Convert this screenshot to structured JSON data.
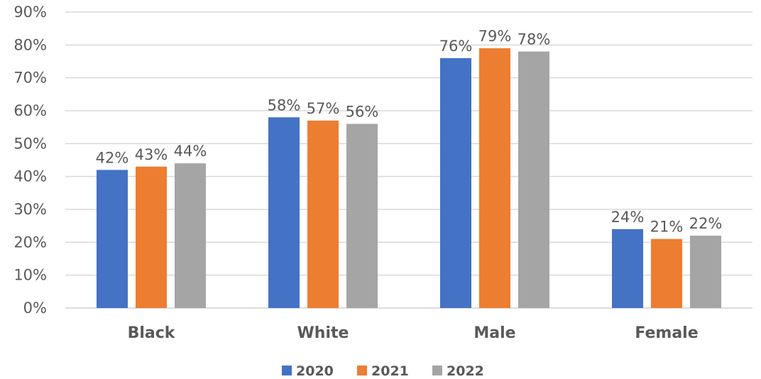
{
  "chart_data": {
    "type": "bar",
    "categories": [
      "Black",
      "White",
      "Male",
      "Female"
    ],
    "series": [
      {
        "name": "2020",
        "values": [
          42,
          58,
          76,
          24
        ],
        "color": "#4472c4"
      },
      {
        "name": "2021",
        "values": [
          43,
          57,
          79,
          21
        ],
        "color": "#ed7d31"
      },
      {
        "name": "2022",
        "values": [
          44,
          56,
          78,
          22
        ],
        "color": "#a5a5a5"
      }
    ],
    "value_suffix": "%",
    "ylim": [
      0,
      90
    ],
    "y_ticks": [
      0,
      10,
      20,
      30,
      40,
      50,
      60,
      70,
      80,
      90
    ],
    "y_tick_labels": [
      "0%",
      "10%",
      "20%",
      "30%",
      "40%",
      "50%",
      "60%",
      "70%",
      "80%",
      "90%"
    ],
    "grid": true,
    "legend_position": "bottom",
    "data_labels": true
  }
}
